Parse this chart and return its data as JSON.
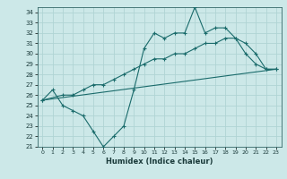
{
  "xlabel": "Humidex (Indice chaleur)",
  "xlim": [
    -0.5,
    23.5
  ],
  "ylim": [
    21,
    34.5
  ],
  "yticks": [
    21,
    22,
    23,
    24,
    25,
    26,
    27,
    28,
    29,
    30,
    31,
    32,
    33,
    34
  ],
  "xticks": [
    0,
    1,
    2,
    3,
    4,
    5,
    6,
    7,
    8,
    9,
    10,
    11,
    12,
    13,
    14,
    15,
    16,
    17,
    18,
    19,
    20,
    21,
    22,
    23
  ],
  "bg_color": "#cce8e8",
  "grid_color": "#b0d4d4",
  "line_color": "#1a6b6b",
  "line1_x": [
    0,
    1,
    2,
    3,
    4,
    5,
    6,
    7,
    8,
    9,
    10,
    11,
    12,
    13,
    14,
    15,
    16,
    17,
    18,
    19,
    20,
    21,
    22,
    23
  ],
  "line1_y": [
    25.5,
    26.5,
    25.0,
    24.5,
    24.0,
    22.5,
    21.0,
    22.0,
    23.0,
    26.5,
    30.5,
    32.0,
    31.5,
    32.0,
    32.0,
    34.5,
    32.0,
    32.5,
    32.5,
    31.5,
    30.0,
    29.0,
    28.5,
    28.5
  ],
  "line2_x": [
    0,
    2,
    3,
    4,
    5,
    6,
    7,
    8,
    9,
    10,
    11,
    12,
    13,
    14,
    15,
    16,
    17,
    18,
    19,
    20,
    21,
    22,
    23
  ],
  "line2_y": [
    25.5,
    26.0,
    26.0,
    26.5,
    27.0,
    27.0,
    27.5,
    28.0,
    28.5,
    29.0,
    29.5,
    29.5,
    30.0,
    30.0,
    30.5,
    31.0,
    31.0,
    31.5,
    31.5,
    31.0,
    30.0,
    28.5,
    28.5
  ],
  "line3_x": [
    0,
    23
  ],
  "line3_y": [
    25.5,
    28.5
  ]
}
